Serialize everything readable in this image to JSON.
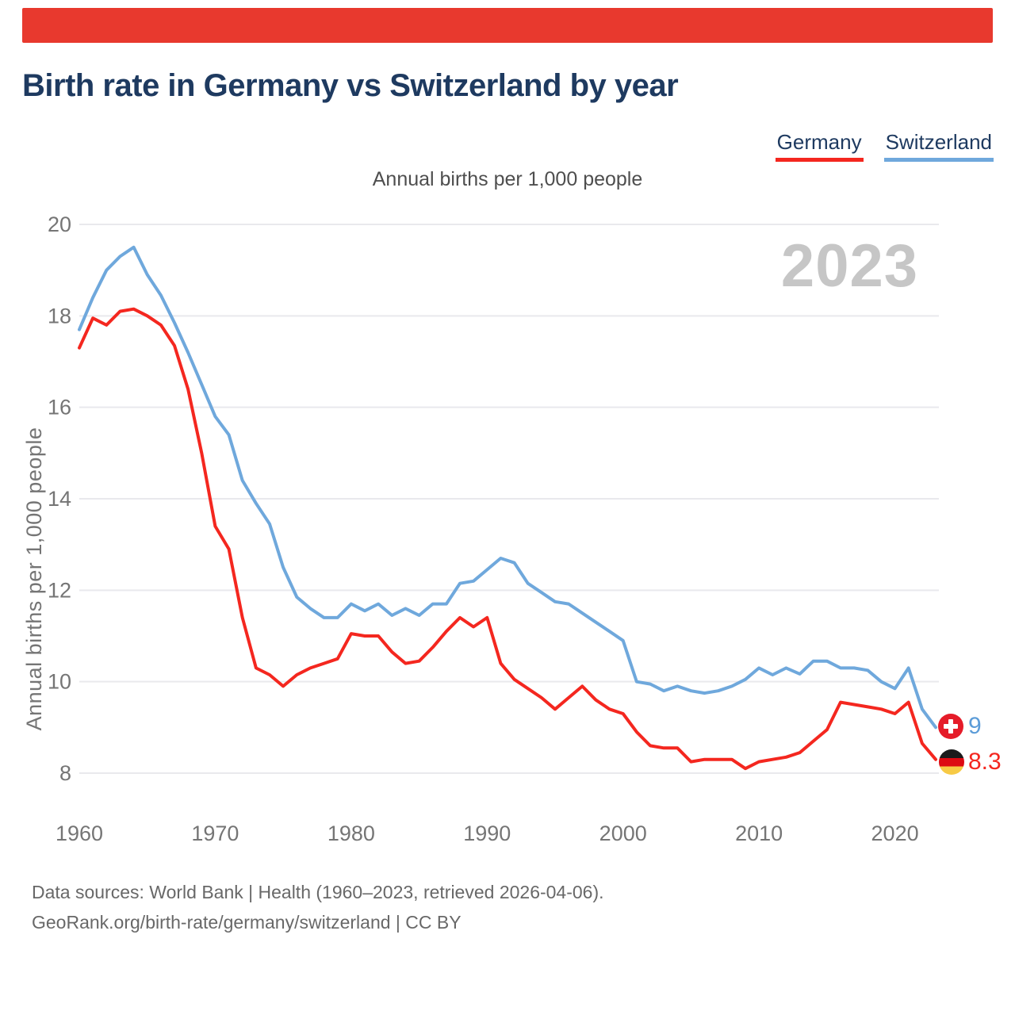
{
  "header": {
    "title": "Birth rate in Germany vs Switzerland by year"
  },
  "legend": {
    "items": [
      {
        "label": "Germany",
        "color": "#f4271f"
      },
      {
        "label": "Switzerland",
        "color": "#6fa8dc"
      }
    ]
  },
  "chart": {
    "subtitle": "Annual births per 1,000 people",
    "watermark_year": "2023"
  },
  "end_labels": {
    "switzerland_value": "9",
    "germany_value": "8.3"
  },
  "footer": {
    "line1": "Data sources: World Bank | Health (1960–2023, retrieved 2026-04-06).",
    "line2": "GeoRank.org/birth-rate/germany/switzerland | CC BY"
  },
  "colors": {
    "brand_bar": "#e8392e",
    "germany_line": "#f4271f",
    "switzerland_line": "#6fa8dc",
    "title_text": "#1e3a60",
    "axis_text": "#757575",
    "gridline": "#e9e9ed",
    "watermark": "#c6c6c6",
    "swiss_flag_red": "#e51c29",
    "german_flag_black": "#1b1b1b",
    "german_flag_red": "#dd0a12",
    "german_flag_gold": "#f7ca45"
  },
  "chart_data": {
    "type": "line",
    "title": "Birth rate in Germany vs Switzerland by year",
    "subtitle": "Annual births per 1,000 people",
    "ylabel": "Annual births per 1,000 people",
    "xlabel": "",
    "ylim": [
      8,
      20
    ],
    "xlim": [
      1960,
      2023
    ],
    "y_ticks": [
      20,
      18,
      16,
      14,
      12,
      10,
      8
    ],
    "x_ticks": [
      1960,
      1970,
      1980,
      1990,
      2000,
      2010,
      2020
    ],
    "grid": "horizontal",
    "legend_position": "top-right",
    "x": [
      1960,
      1961,
      1962,
      1963,
      1964,
      1965,
      1966,
      1967,
      1968,
      1969,
      1970,
      1971,
      1972,
      1973,
      1974,
      1975,
      1976,
      1977,
      1978,
      1979,
      1980,
      1981,
      1982,
      1983,
      1984,
      1985,
      1986,
      1987,
      1988,
      1989,
      1990,
      1991,
      1992,
      1993,
      1994,
      1995,
      1996,
      1997,
      1998,
      1999,
      2000,
      2001,
      2002,
      2003,
      2004,
      2005,
      2006,
      2007,
      2008,
      2009,
      2010,
      2011,
      2012,
      2013,
      2014,
      2015,
      2016,
      2017,
      2018,
      2019,
      2020,
      2021,
      2022,
      2023
    ],
    "series": [
      {
        "name": "Germany",
        "color": "#f4271f",
        "end_label": "8.3",
        "values": [
          17.3,
          17.95,
          17.8,
          18.1,
          18.15,
          18.0,
          17.8,
          17.35,
          16.4,
          15.0,
          13.4,
          12.9,
          11.4,
          10.3,
          10.15,
          9.9,
          10.15,
          10.3,
          10.4,
          10.5,
          11.05,
          11.0,
          11.0,
          10.65,
          10.4,
          10.45,
          10.75,
          11.1,
          11.4,
          11.2,
          11.4,
          10.4,
          10.05,
          9.85,
          9.65,
          9.4,
          9.65,
          9.9,
          9.6,
          9.4,
          9.3,
          8.9,
          8.6,
          8.55,
          8.55,
          8.25,
          8.3,
          8.3,
          8.3,
          8.1,
          8.25,
          8.3,
          8.35,
          8.45,
          8.7,
          8.95,
          9.55,
          9.5,
          9.45,
          9.4,
          9.3,
          9.55,
          8.65,
          8.3
        ]
      },
      {
        "name": "Switzerland",
        "color": "#6fa8dc",
        "end_label": "9",
        "values": [
          17.7,
          18.4,
          19.0,
          19.3,
          19.5,
          18.9,
          18.45,
          17.85,
          17.2,
          16.5,
          15.8,
          15.4,
          14.4,
          13.9,
          13.45,
          12.5,
          11.85,
          11.6,
          11.4,
          11.4,
          11.7,
          11.55,
          11.7,
          11.45,
          11.6,
          11.45,
          11.7,
          11.7,
          12.15,
          12.2,
          12.45,
          12.7,
          12.6,
          12.15,
          11.95,
          11.75,
          11.7,
          11.5,
          11.3,
          11.1,
          10.9,
          10.0,
          9.95,
          9.8,
          9.9,
          9.8,
          9.75,
          9.8,
          9.9,
          10.05,
          10.3,
          10.15,
          10.3,
          10.17,
          10.45,
          10.45,
          10.3,
          10.3,
          10.25,
          10.0,
          9.85,
          10.3,
          9.4,
          9.0
        ]
      }
    ]
  }
}
